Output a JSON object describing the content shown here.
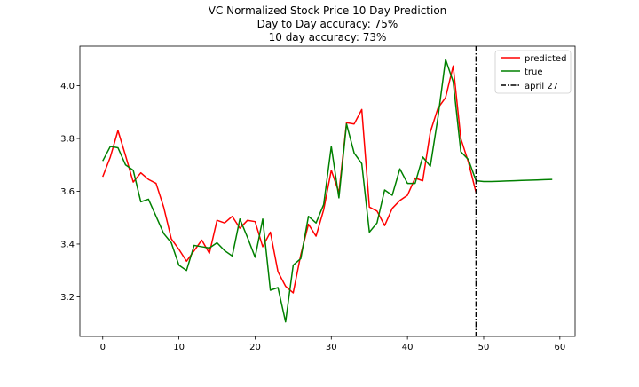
{
  "chart_data": {
    "type": "line",
    "title_lines": [
      "VC Normalized Stock Price 10 Day Prediction",
      "Day to Day accuracy: 75%",
      "10 day accuracy: 73%"
    ],
    "xlabel": "",
    "ylabel": "",
    "xlim": [
      -3,
      62
    ],
    "ylim": [
      3.05,
      4.15
    ],
    "x_ticks": [
      0,
      10,
      20,
      30,
      40,
      50,
      60
    ],
    "y_ticks": [
      3.2,
      3.4,
      3.6,
      3.8,
      4.0
    ],
    "x_tick_labels": [
      "0",
      "10",
      "20",
      "30",
      "40",
      "50",
      "60"
    ],
    "y_tick_labels": [
      "3.2",
      "3.4",
      "3.6",
      "3.8",
      "4.0"
    ],
    "grid": false,
    "legend_position": "top-right",
    "series": [
      {
        "name": "predicted",
        "color": "#ff0000",
        "x": [
          0,
          1,
          2,
          3,
          4,
          5,
          6,
          7,
          8,
          9,
          10,
          11,
          12,
          13,
          14,
          15,
          16,
          17,
          18,
          19,
          20,
          21,
          22,
          23,
          24,
          25,
          26,
          27,
          28,
          29,
          30,
          31,
          32,
          33,
          34,
          35,
          36,
          37,
          38,
          39,
          40,
          41,
          42,
          43,
          44,
          45,
          46,
          47,
          48,
          49
        ],
        "values": [
          3.655,
          3.73,
          3.83,
          3.735,
          3.635,
          3.67,
          3.645,
          3.63,
          3.54,
          3.42,
          3.38,
          3.335,
          3.375,
          3.415,
          3.365,
          3.49,
          3.48,
          3.505,
          3.46,
          3.49,
          3.485,
          3.39,
          3.445,
          3.295,
          3.24,
          3.215,
          3.36,
          3.475,
          3.43,
          3.53,
          3.68,
          3.595,
          3.86,
          3.855,
          3.91,
          3.54,
          3.525,
          3.47,
          3.535,
          3.565,
          3.585,
          3.65,
          3.64,
          3.825,
          3.915,
          3.955,
          4.075,
          3.8,
          3.71,
          3.595
        ]
      },
      {
        "name": "true",
        "color": "#008000",
        "x": [
          0,
          1,
          2,
          3,
          4,
          5,
          6,
          7,
          8,
          9,
          10,
          11,
          12,
          13,
          14,
          15,
          16,
          17,
          18,
          19,
          20,
          21,
          22,
          23,
          24,
          25,
          26,
          27,
          28,
          29,
          30,
          31,
          32,
          33,
          34,
          35,
          36,
          37,
          38,
          39,
          40,
          41,
          42,
          43,
          44,
          45,
          46,
          47,
          48,
          49,
          50,
          51,
          52,
          53,
          54,
          55,
          56,
          57,
          58,
          59
        ],
        "values": [
          3.715,
          3.77,
          3.765,
          3.7,
          3.68,
          3.56,
          3.57,
          3.505,
          3.44,
          3.405,
          3.32,
          3.3,
          3.395,
          3.39,
          3.385,
          3.405,
          3.375,
          3.355,
          3.495,
          3.425,
          3.35,
          3.495,
          3.225,
          3.235,
          3.105,
          3.32,
          3.345,
          3.505,
          3.48,
          3.55,
          3.77,
          3.575,
          3.855,
          3.745,
          3.705,
          3.445,
          3.48,
          3.605,
          3.585,
          3.685,
          3.63,
          3.63,
          3.73,
          3.695,
          3.88,
          4.1,
          4.015,
          3.75,
          3.72,
          3.64,
          3.637,
          3.637,
          3.638,
          3.639,
          3.64,
          3.641,
          3.642,
          3.643,
          3.644,
          3.645
        ]
      }
    ],
    "vline": {
      "x": 49,
      "name": "april 27",
      "color": "#000000",
      "style": "dashdot"
    }
  }
}
